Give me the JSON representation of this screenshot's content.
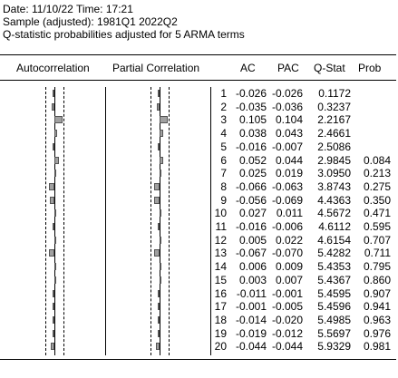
{
  "header": {
    "line1": "Date: 11/10/22   Time: 17:21",
    "line2": "Sample (adjusted): 1981Q1 2022Q2",
    "line3": "Q-statistic probabilities adjusted for 5 ARMA terms"
  },
  "columns": {
    "autocorrelation": "Autocorrelation",
    "partial_correlation": "Partial Correlation",
    "ac": "AC",
    "pac": "PAC",
    "qstat": "Q-Stat",
    "prob": "Prob"
  },
  "rows": [
    {
      "lag": "1",
      "ac": "-0.026",
      "pac": "-0.026",
      "q": "0.1172",
      "prob": ""
    },
    {
      "lag": "2",
      "ac": "-0.035",
      "pac": "-0.036",
      "q": "0.3237",
      "prob": ""
    },
    {
      "lag": "3",
      "ac": "0.105",
      "pac": "0.104",
      "q": "2.2167",
      "prob": ""
    },
    {
      "lag": "4",
      "ac": "0.038",
      "pac": "0.043",
      "q": "2.4661",
      "prob": ""
    },
    {
      "lag": "5",
      "ac": "-0.016",
      "pac": "-0.007",
      "q": "2.5086",
      "prob": ""
    },
    {
      "lag": "6",
      "ac": "0.052",
      "pac": "0.044",
      "q": "2.9845",
      "prob": "0.084"
    },
    {
      "lag": "7",
      "ac": "0.025",
      "pac": "0.019",
      "q": "3.0950",
      "prob": "0.213"
    },
    {
      "lag": "8",
      "ac": "-0.066",
      "pac": "-0.063",
      "q": "3.8743",
      "prob": "0.275"
    },
    {
      "lag": "9",
      "ac": "-0.056",
      "pac": "-0.069",
      "q": "4.4363",
      "prob": "0.350"
    },
    {
      "lag": "10",
      "ac": "0.027",
      "pac": "0.011",
      "q": "4.5672",
      "prob": "0.471"
    },
    {
      "lag": "11",
      "ac": "-0.016",
      "pac": "-0.006",
      "q": "4.6112",
      "prob": "0.595"
    },
    {
      "lag": "12",
      "ac": "0.005",
      "pac": "0.022",
      "q": "4.6154",
      "prob": "0.707"
    },
    {
      "lag": "13",
      "ac": "-0.067",
      "pac": "-0.070",
      "q": "5.4282",
      "prob": "0.711"
    },
    {
      "lag": "14",
      "ac": "0.006",
      "pac": "0.009",
      "q": "5.4353",
      "prob": "0.795"
    },
    {
      "lag": "15",
      "ac": "0.003",
      "pac": "0.007",
      "q": "5.4367",
      "prob": "0.860"
    },
    {
      "lag": "16",
      "ac": "-0.011",
      "pac": "-0.001",
      "q": "5.4595",
      "prob": "0.907"
    },
    {
      "lag": "17",
      "ac": "-0.001",
      "pac": "-0.005",
      "q": "5.4596",
      "prob": "0.941"
    },
    {
      "lag": "18",
      "ac": "-0.014",
      "pac": "-0.020",
      "q": "5.4985",
      "prob": "0.963"
    },
    {
      "lag": "19",
      "ac": "-0.019",
      "pac": "-0.012",
      "q": "5.5697",
      "prob": "0.976"
    },
    {
      "lag": "20",
      "ac": "-0.044",
      "pac": "-0.044",
      "q": "5.9329",
      "prob": "0.981"
    }
  ],
  "colors": {
    "bar_fill": "#a0a0a0",
    "bar_border": "#555555",
    "text": "#000000"
  }
}
